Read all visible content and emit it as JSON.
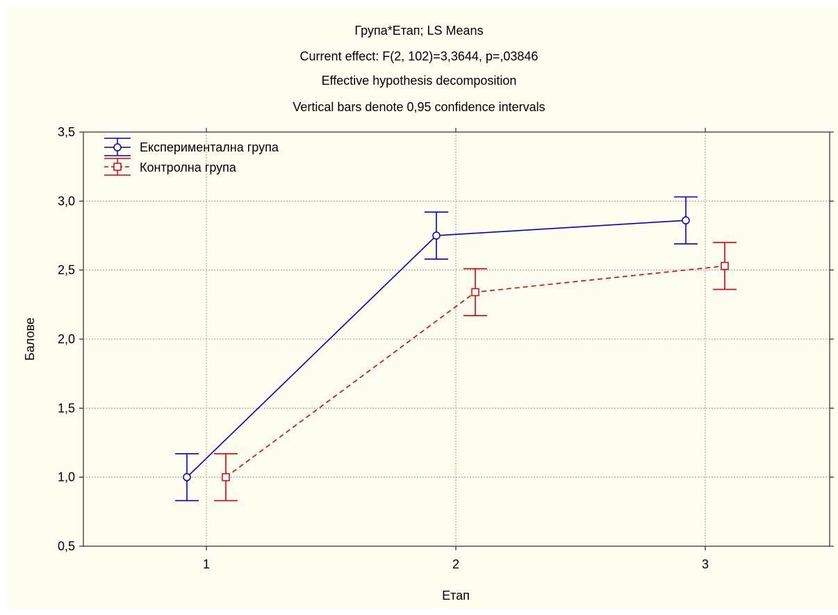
{
  "chart_data": {
    "type": "line",
    "title": "Група*Етап; LS Means",
    "subtitle_lines": [
      "Current effect: F(2, 102)=3,3644, p=,03846",
      "Effective hypothesis decomposition",
      "Vertical bars denote 0,95 confidence intervals"
    ],
    "xlabel": "Етап",
    "ylabel": "Балове",
    "categories": [
      "1",
      "2",
      "3"
    ],
    "ylim": [
      0.5,
      3.5
    ],
    "yticks": [
      0.5,
      1.0,
      1.5,
      2.0,
      2.5,
      3.0,
      3.5
    ],
    "ytick_labels": [
      "0,5",
      "1,0",
      "1,5",
      "2,0",
      "2,5",
      "3,0",
      "3,5"
    ],
    "grid": true,
    "legend_position": "top-left",
    "series": [
      {
        "name": "Експериментална група",
        "color": "#0000cc",
        "marker": "circle",
        "line_style": "solid",
        "values": [
          1.0,
          2.75,
          2.86
        ],
        "ci_low": [
          0.83,
          2.58,
          2.69
        ],
        "ci_high": [
          1.17,
          2.92,
          3.03
        ]
      },
      {
        "name": "Контролна група",
        "color": "#e00000",
        "marker": "square",
        "line_style": "dashed",
        "values": [
          1.0,
          2.34,
          2.53
        ],
        "ci_low": [
          0.83,
          2.17,
          2.36
        ],
        "ci_high": [
          1.17,
          2.51,
          2.7
        ]
      }
    ]
  }
}
